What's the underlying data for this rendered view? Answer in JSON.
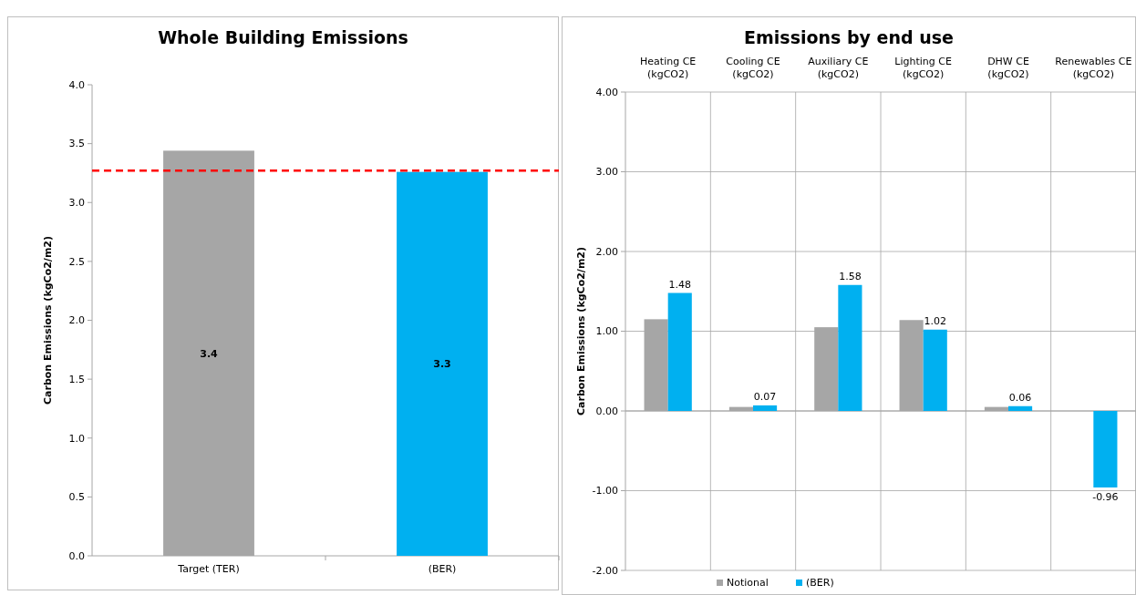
{
  "chart_data": [
    {
      "type": "bar",
      "title": "Whole Building Emissions",
      "ylabel": "Carbon Emissions (kgCo2/m2)",
      "categories": [
        "Target (TER)",
        "(BER)"
      ],
      "values": [
        3.44,
        3.26
      ],
      "colors": [
        "#a6a6a6",
        "#00b0f0"
      ],
      "value_labels": [
        "3.4",
        "3.3"
      ],
      "ylim": [
        0,
        4
      ],
      "yticks": [
        {
          "value": 0,
          "label": "0.0"
        },
        {
          "value": 0.5,
          "label": "0.5"
        },
        {
          "value": 1,
          "label": "1.0"
        },
        {
          "value": 1.5,
          "label": "1.5"
        },
        {
          "value": 2,
          "label": "2.0"
        },
        {
          "value": 2.5,
          "label": "2.5"
        },
        {
          "value": 3,
          "label": "3.0"
        },
        {
          "value": 3.5,
          "label": "3.5"
        },
        {
          "value": 4,
          "label": "4.0"
        }
      ],
      "ref_lines": [
        {
          "axis": "y",
          "value": 3.27,
          "label": null,
          "color": "#ff0000",
          "line_style": "dashed"
        }
      ],
      "grid": false,
      "legend": false
    },
    {
      "type": "bar",
      "title": "Emissions by end use",
      "ylabel": "Carbon Emissions (kgCo2/m2)",
      "categories": [
        "Heating CE (kgCO2)",
        "Cooling CE (kgCO2)",
        "Auxiliary CE (kgCO2)",
        "Lighting CE (kgCO2)",
        "DHW CE (kgCO2)",
        "Renewables CE (kgCO2)"
      ],
      "series": [
        {
          "name": "Notional",
          "color": "#a6a6a6",
          "values": [
            1.15,
            0.05,
            1.05,
            1.14,
            0.05,
            0
          ]
        },
        {
          "name": "(BER)",
          "color": "#00b0f0",
          "values": [
            1.48,
            0.07,
            1.58,
            1.02,
            0.06,
            -0.96
          ],
          "value_labels": [
            "1.48",
            "0.07",
            "1.58",
            "1.02",
            "0.06",
            "-0.96"
          ]
        }
      ],
      "ylim": [
        -2,
        4
      ],
      "yticks": [
        {
          "value": -2,
          "label": "-2.00"
        },
        {
          "value": -1,
          "label": "-1.00"
        },
        {
          "value": 0,
          "label": "0.00"
        },
        {
          "value": 1,
          "label": "1.00"
        },
        {
          "value": 2,
          "label": "2.00"
        },
        {
          "value": 3,
          "label": "3.00"
        },
        {
          "value": 4,
          "label": "4.00"
        }
      ],
      "grid": true,
      "legend": "bottom"
    }
  ]
}
